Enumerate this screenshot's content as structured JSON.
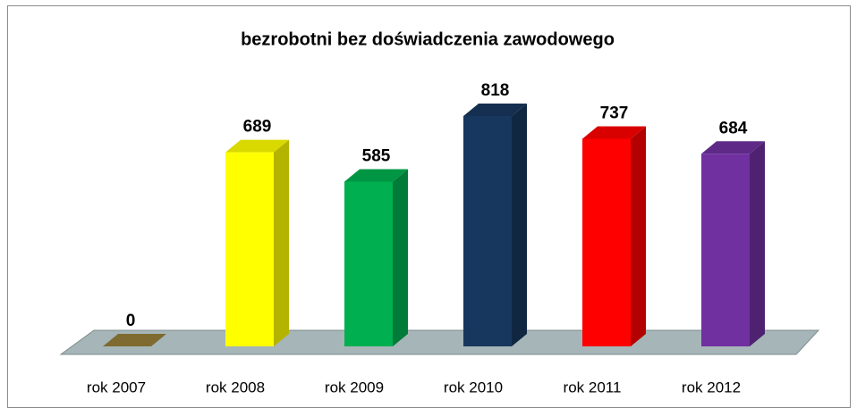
{
  "chart_data": {
    "type": "bar",
    "title": "bezrobotni bez doświadczenia zawodowego",
    "categories": [
      "rok 2007",
      "rok 2008",
      "rok 2009",
      "rok 2010",
      "rok 2011",
      "rok 2012"
    ],
    "values": [
      0,
      689,
      585,
      818,
      737,
      684
    ],
    "colors": [
      "#7f6a30",
      "#ffff00",
      "#00b050",
      "#17375e",
      "#ff0000",
      "#7030a0"
    ]
  }
}
